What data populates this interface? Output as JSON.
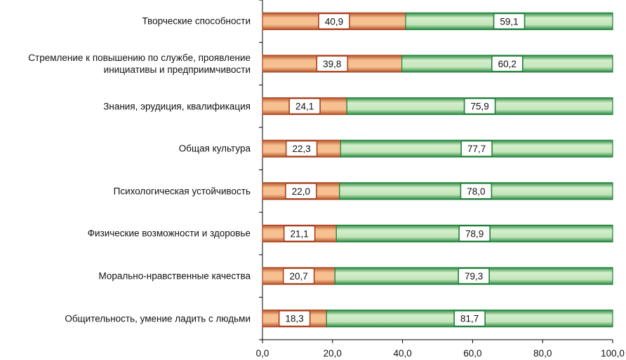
{
  "chart_data": {
    "type": "bar",
    "stacked": true,
    "orientation": "horizontal",
    "categories": [
      "Творческие способности",
      "Стремление к повышению по службе, проявление инициативы и предприимчивости",
      "Знания, эрудиция, квалификация",
      "Общая культура",
      "Психологическая устойчивость",
      "Физические возможности и здоровье",
      "Морально-нравственные качества",
      "Общительность, умение ладить с людьми"
    ],
    "category_lines": [
      [
        "Творческие способности"
      ],
      [
        "Стремление к повышению по службе, проявление",
        "инициативы и предприимчивости"
      ],
      [
        "Знания, эрудиция, квалификация"
      ],
      [
        "Общая культура"
      ],
      [
        "Психологическая устойчивость"
      ],
      [
        "Физические возможности и здоровье"
      ],
      [
        "Морально-нравственные качества"
      ],
      [
        "Общительность, умение ладить с людьми"
      ]
    ],
    "series": [
      {
        "name": "series-1",
        "color": "#a8401e",
        "fill": "#f4b98a",
        "values": [
          40.9,
          39.8,
          24.1,
          22.3,
          22.0,
          21.1,
          20.7,
          18.3
        ],
        "labels": [
          "40,9",
          "39,8",
          "24,1",
          "22,3",
          "22,0",
          "21,1",
          "20,7",
          "18,3"
        ]
      },
      {
        "name": "series-2",
        "color": "#1e8038",
        "fill": "#c8e8c0",
        "values": [
          59.1,
          60.2,
          75.9,
          77.7,
          78.0,
          78.9,
          79.3,
          81.7
        ],
        "labels": [
          "59,1",
          "60,2",
          "75,9",
          "77,7",
          "78,0",
          "78,9",
          "79,3",
          "81,7"
        ]
      }
    ],
    "xlim": [
      0,
      100
    ],
    "xticks": [
      0,
      20,
      40,
      60,
      80,
      100
    ],
    "xtick_labels": [
      "0,0",
      "20,0",
      "40,0",
      "60,0",
      "80,0",
      "100,0"
    ],
    "title": "",
    "xlabel": "",
    "ylabel": "",
    "grid": false,
    "legend": "none"
  }
}
